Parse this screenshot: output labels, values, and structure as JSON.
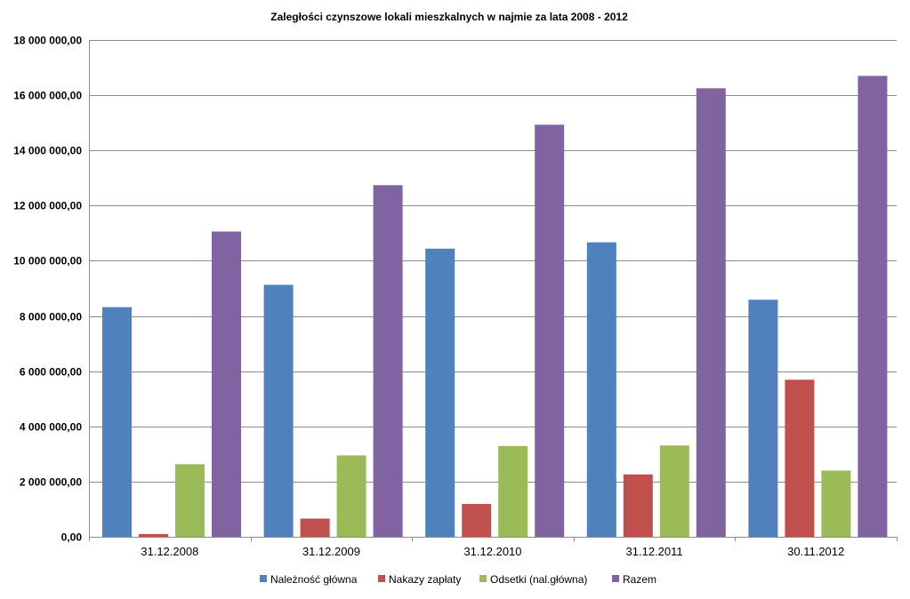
{
  "chart_data": {
    "type": "bar",
    "title": "Zaległości czynszowe lokali mieszkalnych w najmie za lata 2008 - 2012",
    "xlabel": "",
    "ylabel": "",
    "categories": [
      "31.12.2008",
      "31.12.2009",
      "31.12.2010",
      "31.12.2011",
      "30.11.2012"
    ],
    "ylim": [
      0,
      18000000
    ],
    "yticks": [
      0,
      2000000,
      4000000,
      6000000,
      8000000,
      10000000,
      12000000,
      14000000,
      16000000,
      18000000
    ],
    "ytick_labels": [
      "0,00",
      "2 000 000,00",
      "4 000 000,00",
      "6 000 000,00",
      "8 000 000,00",
      "10 000 000,00",
      "12 000 000,00",
      "14 000 000,00",
      "16 000 000,00",
      "18 000 000,00"
    ],
    "grid": true,
    "legend_position": "bottom",
    "series": [
      {
        "name": "Należność główna",
        "color": "#4f81bd",
        "values": [
          8320000,
          9130000,
          10440000,
          10670000,
          8590000
        ]
      },
      {
        "name": "Nakazy zapłaty",
        "color": "#c0504d",
        "values": [
          100000,
          660000,
          1190000,
          2260000,
          5690000
        ]
      },
      {
        "name": "Odsetki (nal.główna)",
        "color": "#9bbb59",
        "values": [
          2630000,
          2950000,
          3290000,
          3310000,
          2400000
        ]
      },
      {
        "name": "Razem",
        "color": "#8064a2",
        "values": [
          11060000,
          12740000,
          14930000,
          16250000,
          16700000
        ]
      }
    ]
  }
}
